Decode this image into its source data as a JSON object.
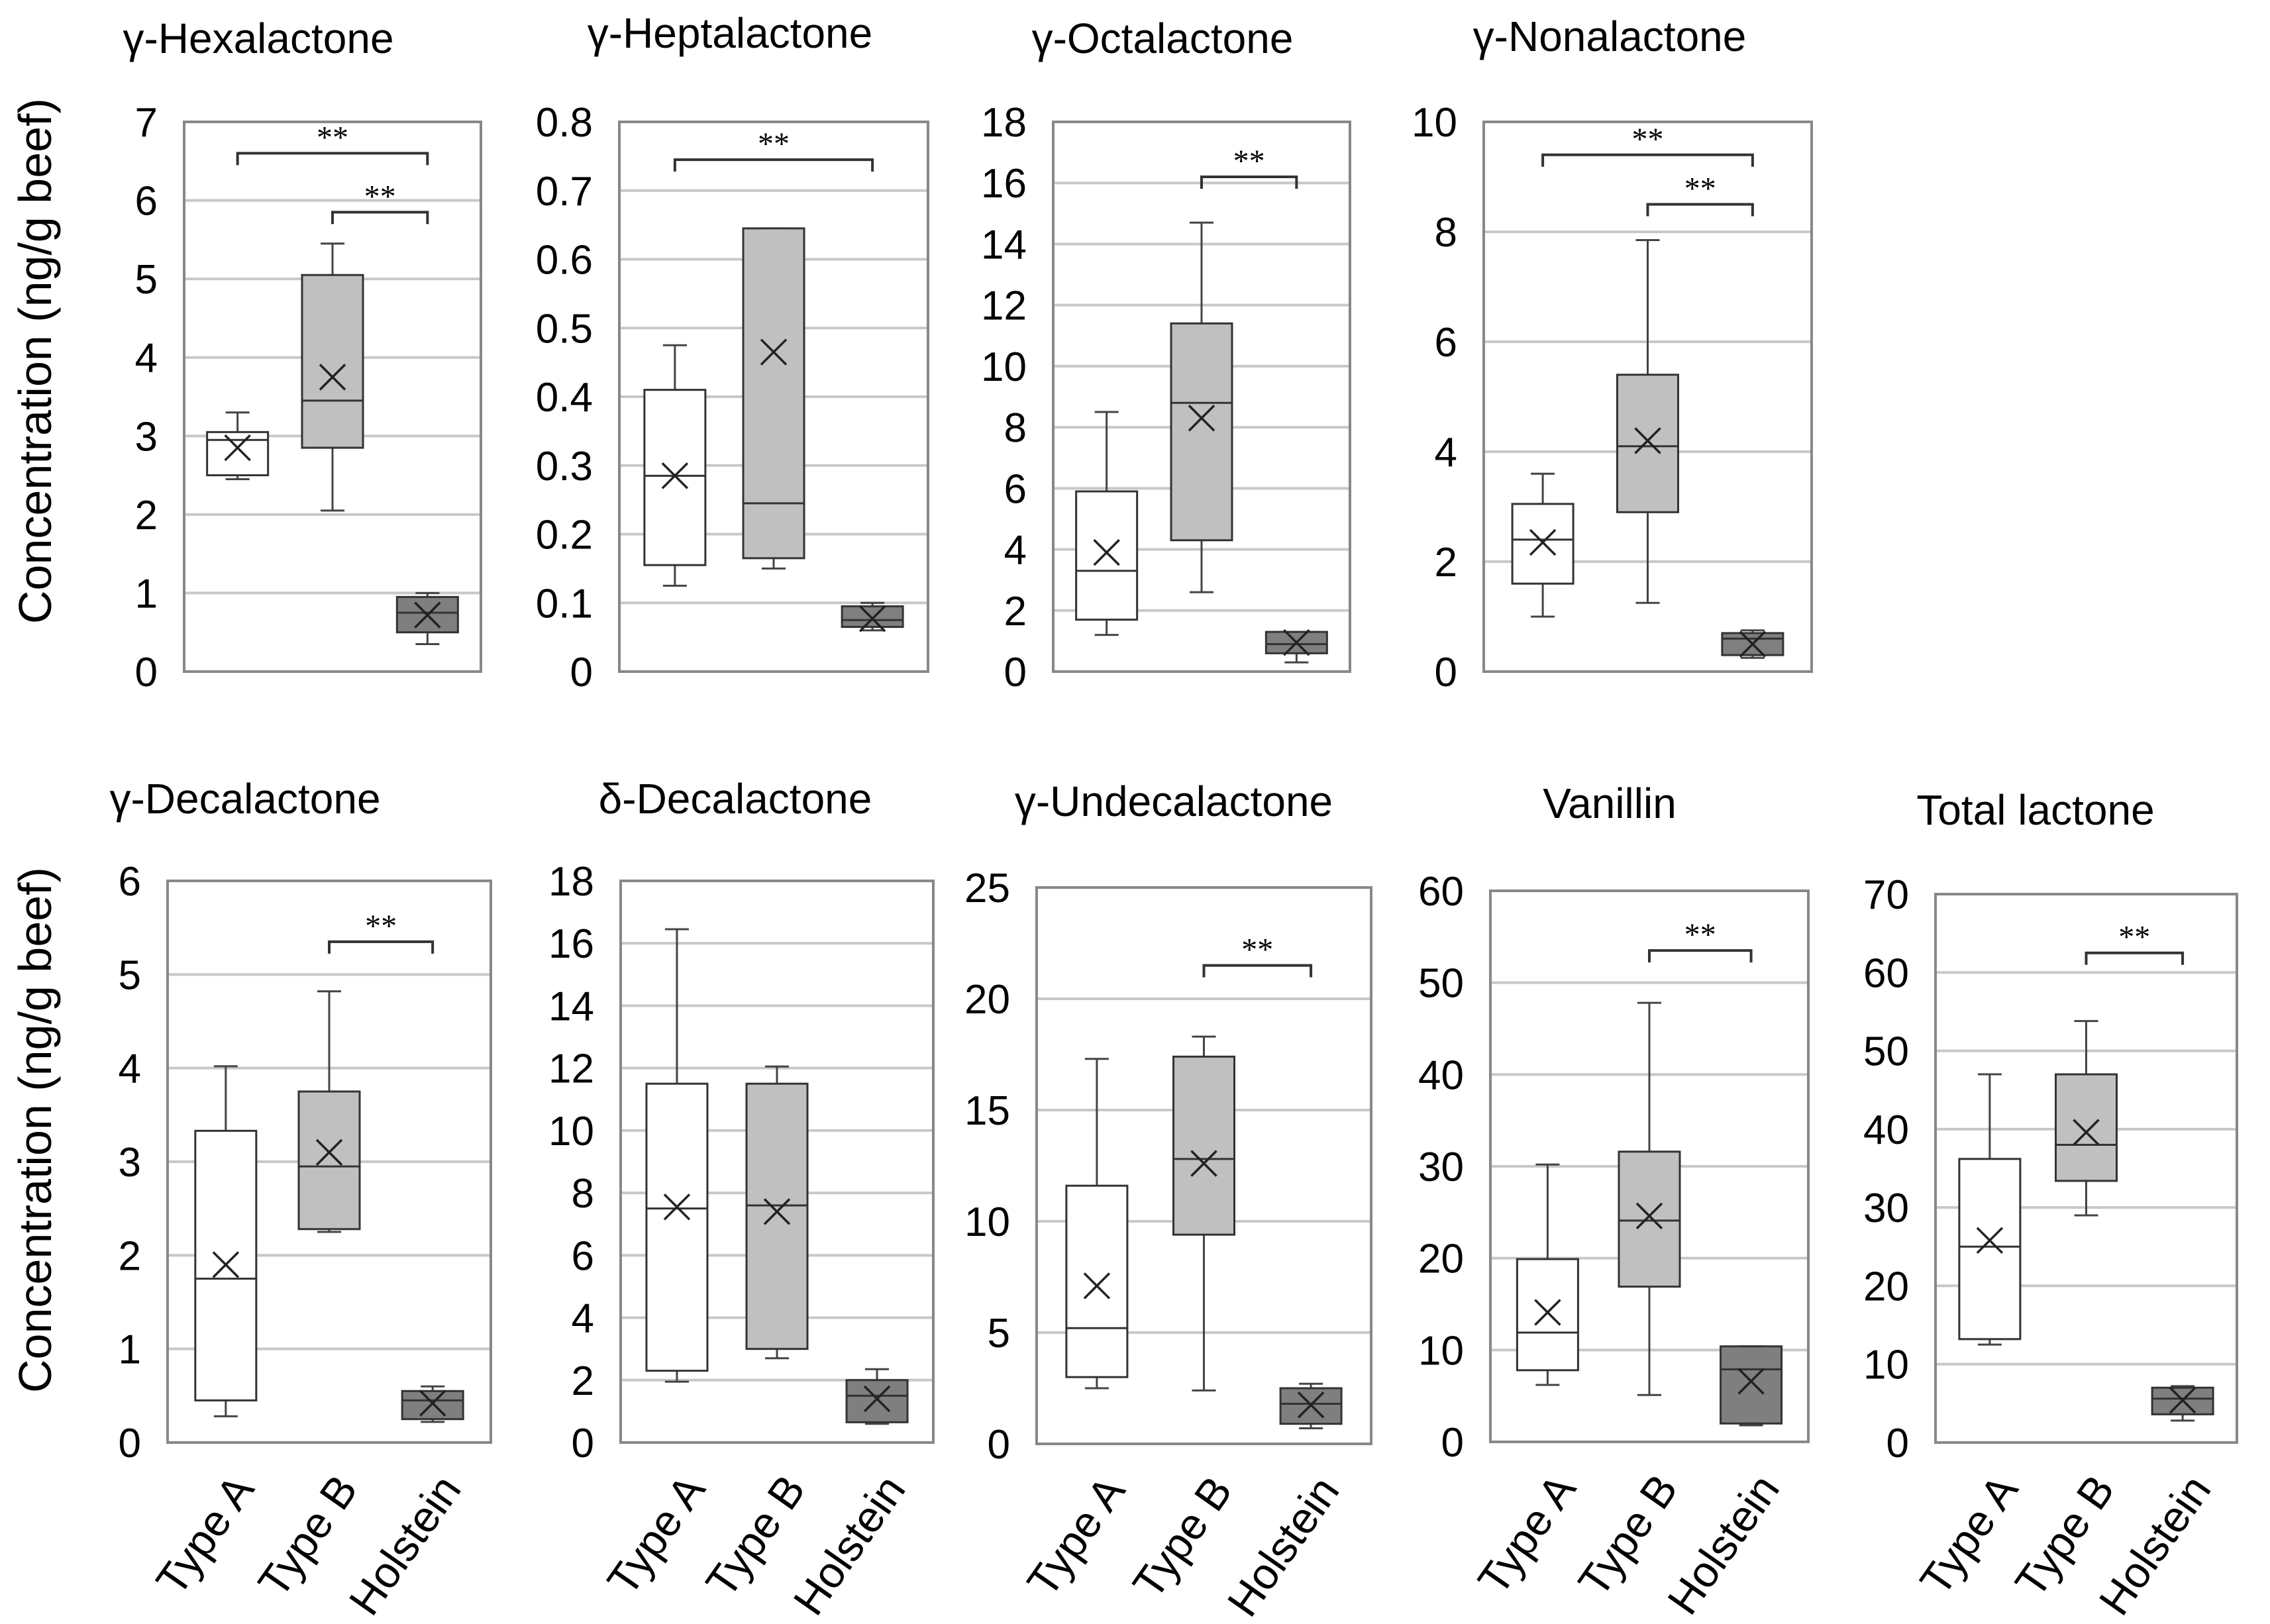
{
  "figure": {
    "y_axis_label": "Concentration  (ng/g beef)",
    "colors": {
      "Type A": "#ffffff",
      "Type B": "#c0c0c0",
      "Holstein": "#7f7f7f",
      "grid": "#c8c8c8",
      "frame": "#888888"
    }
  },
  "chart_data": [
    {
      "type": "box",
      "title": "γ-Hexalactone",
      "categories": [
        "Type A",
        "Type B",
        "Holstein"
      ],
      "ylim": [
        0,
        7
      ],
      "yticks": [
        0,
        1,
        2,
        3,
        4,
        5,
        6,
        7
      ],
      "grid": true,
      "series": [
        {
          "name": "Type A",
          "min": 2.45,
          "q1": 2.5,
          "median": 2.95,
          "q3": 3.05,
          "max": 3.3,
          "mean": 2.85
        },
        {
          "name": "Type B",
          "min": 2.05,
          "q1": 2.85,
          "median": 3.45,
          "q3": 5.05,
          "max": 5.45,
          "mean": 3.75
        },
        {
          "name": "Holstein",
          "min": 0.35,
          "q1": 0.5,
          "median": 0.75,
          "q3": 0.95,
          "max": 1.0,
          "mean": 0.72
        }
      ],
      "significance": [
        {
          "from": "Type A",
          "to": "Holstein",
          "label": "**",
          "y": 6.6
        },
        {
          "from": "Type B",
          "to": "Holstein",
          "label": "**",
          "y": 5.85
        }
      ]
    },
    {
      "type": "box",
      "title": "γ-Heptalactone",
      "categories": [
        "Type A",
        "Type B",
        "Holstein"
      ],
      "ylim": [
        0,
        0.8
      ],
      "yticks": [
        0,
        0.1,
        0.2,
        0.3,
        0.4,
        0.5,
        0.6,
        0.7,
        0.8
      ],
      "grid": true,
      "series": [
        {
          "name": "Type A",
          "min": 0.125,
          "q1": 0.155,
          "median": 0.285,
          "q3": 0.41,
          "max": 0.475,
          "mean": 0.285
        },
        {
          "name": "Type B",
          "min": 0.15,
          "q1": 0.165,
          "median": 0.245,
          "q3": 0.645,
          "max": 0.645,
          "mean": 0.465
        },
        {
          "name": "Holstein",
          "min": 0.06,
          "q1": 0.065,
          "median": 0.075,
          "q3": 0.095,
          "max": 0.1,
          "mean": 0.077
        }
      ],
      "significance": [
        {
          "from": "Type A",
          "to": "Holstein",
          "label": "**",
          "y": 0.745
        }
      ]
    },
    {
      "type": "box",
      "title": "γ-Octalactone",
      "categories": [
        "Type A",
        "Type B",
        "Holstein"
      ],
      "ylim": [
        0,
        18
      ],
      "yticks": [
        0,
        2,
        4,
        6,
        8,
        10,
        12,
        14,
        16,
        18
      ],
      "grid": true,
      "series": [
        {
          "name": "Type A",
          "min": 1.2,
          "q1": 1.7,
          "median": 3.3,
          "q3": 5.9,
          "max": 8.5,
          "mean": 3.9
        },
        {
          "name": "Type B",
          "min": 2.6,
          "q1": 4.3,
          "median": 8.8,
          "q3": 11.4,
          "max": 14.7,
          "mean": 8.3
        },
        {
          "name": "Holstein",
          "min": 0.3,
          "q1": 0.6,
          "median": 0.9,
          "q3": 1.3,
          "max": 1.3,
          "mean": 0.95
        }
      ],
      "significance": [
        {
          "from": "Type B",
          "to": "Holstein",
          "label": "**",
          "y": 16.2
        }
      ]
    },
    {
      "type": "box",
      "title": "γ-Nonalactone",
      "categories": [
        "Type A",
        "Type B",
        "Holstein"
      ],
      "ylim": [
        0,
        10
      ],
      "yticks": [
        0,
        2,
        4,
        6,
        8,
        10
      ],
      "grid": true,
      "series": [
        {
          "name": "Type A",
          "min": 1.0,
          "q1": 1.6,
          "median": 2.4,
          "q3": 3.05,
          "max": 3.6,
          "mean": 2.35
        },
        {
          "name": "Type B",
          "min": 1.25,
          "q1": 2.9,
          "median": 4.1,
          "q3": 5.4,
          "max": 7.85,
          "mean": 4.2
        },
        {
          "name": "Holstein",
          "min": 0.25,
          "q1": 0.3,
          "median": 0.6,
          "q3": 0.7,
          "max": 0.75,
          "mean": 0.5
        }
      ],
      "significance": [
        {
          "from": "Type A",
          "to": "Holstein",
          "label": "**",
          "y": 9.4
        },
        {
          "from": "Type B",
          "to": "Holstein",
          "label": "**",
          "y": 8.5
        }
      ]
    },
    {
      "type": "box",
      "title": "γ-Decalactone",
      "categories": [
        "Type A",
        "Type B",
        "Holstein"
      ],
      "ylim": [
        0,
        6
      ],
      "yticks": [
        0,
        1,
        2,
        3,
        4,
        5,
        6
      ],
      "grid": true,
      "series": [
        {
          "name": "Type A",
          "min": 0.28,
          "q1": 0.45,
          "median": 1.75,
          "q3": 3.33,
          "max": 4.02,
          "mean": 1.9
        },
        {
          "name": "Type B",
          "min": 2.25,
          "q1": 2.28,
          "median": 2.95,
          "q3": 3.75,
          "max": 4.82,
          "mean": 3.1
        },
        {
          "name": "Holstein",
          "min": 0.22,
          "q1": 0.25,
          "median": 0.45,
          "q3": 0.55,
          "max": 0.6,
          "mean": 0.42
        }
      ],
      "significance": [
        {
          "from": "Type B",
          "to": "Holstein",
          "label": "**",
          "y": 5.35
        }
      ]
    },
    {
      "type": "box",
      "title": "δ-Decalactone",
      "categories": [
        "Type A",
        "Type B",
        "Holstein"
      ],
      "ylim": [
        0,
        18
      ],
      "yticks": [
        0,
        2,
        4,
        6,
        8,
        10,
        12,
        14,
        16,
        18
      ],
      "grid": true,
      "series": [
        {
          "name": "Type A",
          "min": 1.95,
          "q1": 2.3,
          "median": 7.5,
          "q3": 11.5,
          "max": 16.45,
          "mean": 7.55
        },
        {
          "name": "Type B",
          "min": 2.7,
          "q1": 3.0,
          "median": 7.6,
          "q3": 11.5,
          "max": 12.05,
          "mean": 7.4
        },
        {
          "name": "Holstein",
          "min": 0.6,
          "q1": 0.65,
          "median": 1.5,
          "q3": 2.0,
          "max": 2.35,
          "mean": 1.4
        }
      ],
      "significance": []
    },
    {
      "type": "box",
      "title": "γ-Undecalactone",
      "categories": [
        "Type A",
        "Type B",
        "Holstein"
      ],
      "ylim": [
        0,
        25
      ],
      "yticks": [
        0,
        5,
        10,
        15,
        20,
        25
      ],
      "grid": true,
      "series": [
        {
          "name": "Type A",
          "min": 2.5,
          "q1": 3.0,
          "median": 5.2,
          "q3": 11.6,
          "max": 17.3,
          "mean": 7.1
        },
        {
          "name": "Type B",
          "min": 2.4,
          "q1": 9.4,
          "median": 12.8,
          "q3": 17.4,
          "max": 18.3,
          "mean": 12.6
        },
        {
          "name": "Holstein",
          "min": 0.7,
          "q1": 0.9,
          "median": 1.8,
          "q3": 2.5,
          "max": 2.7,
          "mean": 1.75
        }
      ],
      "significance": [
        {
          "from": "Type B",
          "to": "Holstein",
          "label": "**",
          "y": 21.5
        }
      ]
    },
    {
      "type": "box",
      "title": "Vanillin",
      "categories": [
        "Type A",
        "Type B",
        "Holstein"
      ],
      "ylim": [
        0,
        60
      ],
      "yticks": [
        0,
        10,
        20,
        30,
        40,
        50,
        60
      ],
      "grid": true,
      "series": [
        {
          "name": "Type A",
          "min": 6.2,
          "q1": 7.8,
          "median": 11.9,
          "q3": 19.9,
          "max": 30.2,
          "mean": 14.1
        },
        {
          "name": "Type B",
          "min": 5.1,
          "q1": 16.9,
          "median": 24.1,
          "q3": 31.6,
          "max": 47.8,
          "mean": 24.6
        },
        {
          "name": "Holstein",
          "min": 1.8,
          "q1": 2.0,
          "median": 7.9,
          "q3": 10.4,
          "max": 10.4,
          "mean": 6.6
        }
      ],
      "significance": [
        {
          "from": "Type B",
          "to": "Holstein",
          "label": "**",
          "y": 53.5
        }
      ]
    },
    {
      "type": "box",
      "title": "Total lactone",
      "categories": [
        "Type A",
        "Type B",
        "Holstein"
      ],
      "ylim": [
        0,
        70
      ],
      "yticks": [
        0,
        10,
        20,
        30,
        40,
        50,
        60,
        70
      ],
      "grid": true,
      "series": [
        {
          "name": "Type A",
          "min": 12.5,
          "q1": 13.2,
          "median": 25.0,
          "q3": 36.2,
          "max": 47.0,
          "mean": 25.8
        },
        {
          "name": "Type B",
          "min": 29.0,
          "q1": 33.4,
          "median": 38.0,
          "q3": 47.0,
          "max": 53.8,
          "mean": 39.6
        },
        {
          "name": "Holstein",
          "min": 2.8,
          "q1": 3.6,
          "median": 5.6,
          "q3": 7.0,
          "max": 7.2,
          "mean": 5.4
        }
      ],
      "significance": [
        {
          "from": "Type B",
          "to": "Holstein",
          "label": "**",
          "y": 62.5
        }
      ]
    }
  ]
}
